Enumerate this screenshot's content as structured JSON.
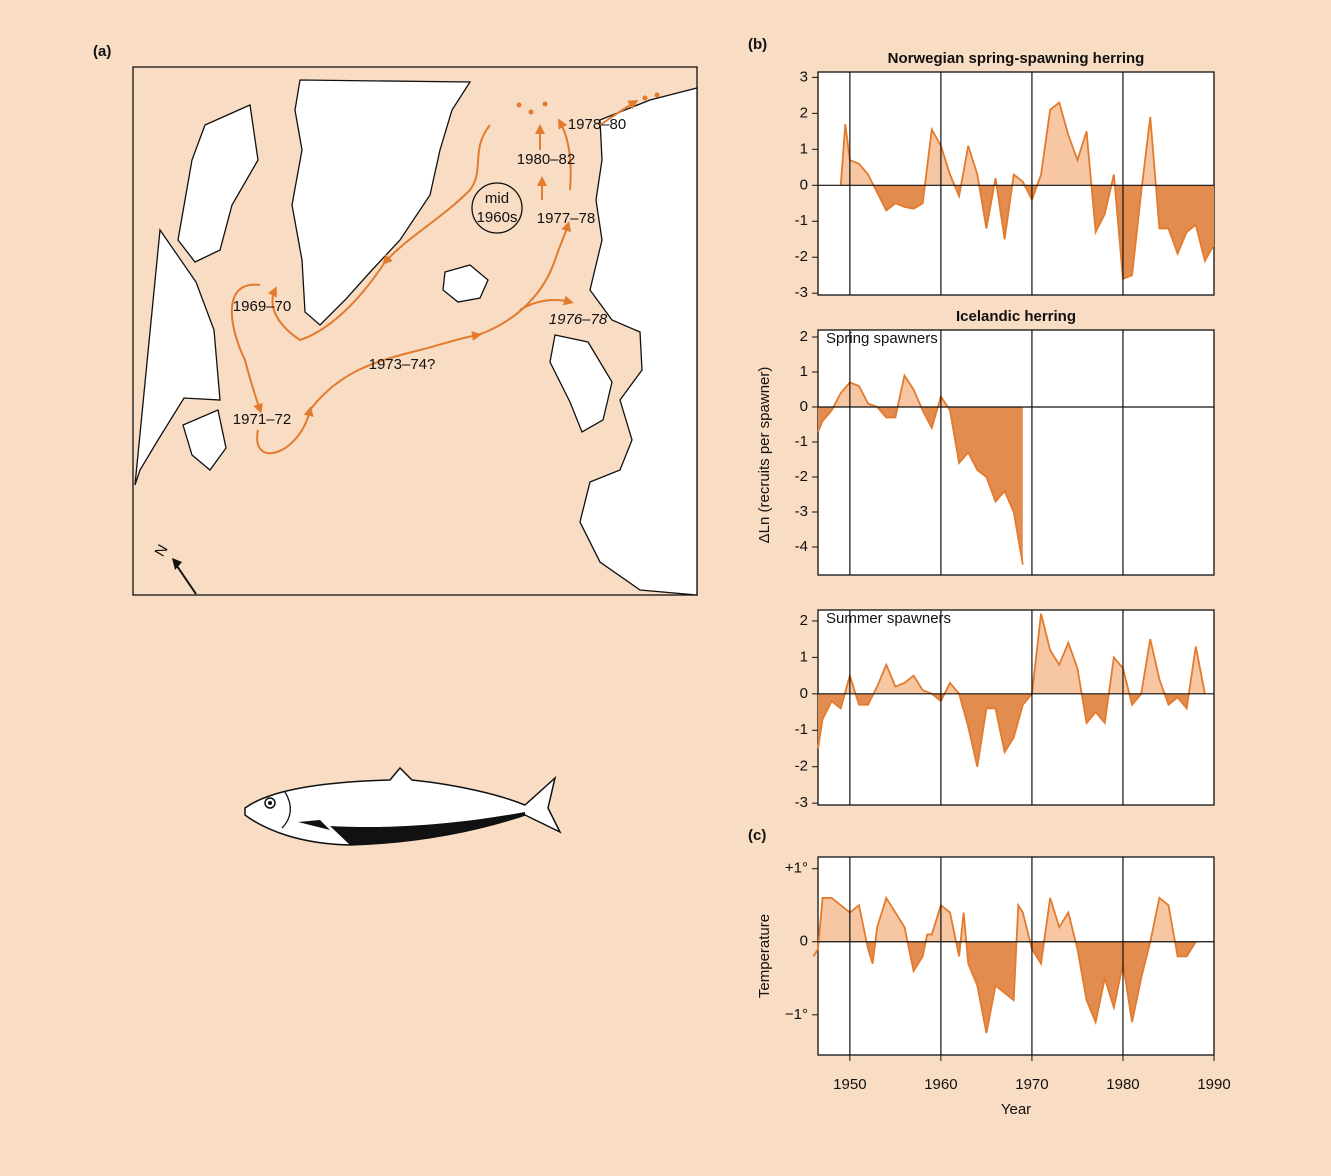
{
  "map": {
    "panel_label": "(a)",
    "north": "N",
    "labels": [
      "1978–80",
      "1980–82",
      "1977–78",
      "1969–70",
      "1976–78",
      "1973–74?",
      "1971–72"
    ],
    "circle_label": [
      "mid",
      "1960s"
    ]
  },
  "chart_data": [
    {
      "type": "area",
      "panel_label": "(b)",
      "title": "Norwegian spring-spawning herring",
      "x": [
        1949,
        1949.5,
        1950,
        1951,
        1952,
        1953,
        1954,
        1955,
        1956,
        1957,
        1958,
        1959,
        1960,
        1961,
        1962,
        1963,
        1964,
        1965,
        1966,
        1967,
        1968,
        1969,
        1970,
        1971,
        1972,
        1973,
        1974,
        1975,
        1976,
        1977,
        1978,
        1979,
        1980,
        1981,
        1982,
        1983,
        1984,
        1985,
        1986,
        1987,
        1988,
        1989,
        1990
      ],
      "series": [
        {
          "values": [
            0,
            1.7,
            0.7,
            0.6,
            0.3,
            -0.2,
            -0.7,
            -0.5,
            -0.6,
            -0.65,
            -0.5,
            1.55,
            1.1,
            0.3,
            -0.3,
            1.1,
            0.3,
            -1.2,
            0.2,
            -1.5,
            0.3,
            0.1,
            -0.4,
            0.3,
            2.1,
            2.3,
            1.4,
            0.7,
            1.5,
            -1.3,
            -0.8,
            0.3,
            -2.6,
            -2.5,
            -0.2,
            1.9,
            -1.2,
            -1.2,
            -1.9,
            -1.3,
            -1.1,
            -2.1,
            -1.65
          ]
        }
      ],
      "colors": {
        "positive": "#f6c7a2",
        "negative": "#e38c4f",
        "line": "#e27b2e"
      },
      "xlim": [
        1946.5,
        1990
      ],
      "xticks": [
        1950,
        1960,
        1970,
        1980,
        1990
      ],
      "xtick_labels": false,
      "ylim": [
        -3.05,
        3.15
      ],
      "yticks": [
        3,
        2,
        1,
        0,
        -1,
        -2,
        -3
      ]
    },
    {
      "type": "area",
      "title": "Icelandic herring",
      "subtitle": "Spring spawners",
      "ylabel": "ΔLn (recruits per spawner)",
      "x": [
        1946.5,
        1947,
        1948,
        1949,
        1950,
        1951,
        1952,
        1953,
        1954,
        1955,
        1956,
        1957,
        1958,
        1959,
        1960,
        1961,
        1962,
        1963,
        1964,
        1965,
        1966,
        1967,
        1968,
        1969
      ],
      "series": [
        {
          "values": [
            -0.7,
            -0.4,
            -0.1,
            0.4,
            0.7,
            0.6,
            0.1,
            0.0,
            -0.3,
            -0.3,
            0.9,
            0.5,
            -0.1,
            -0.6,
            0.3,
            -0.1,
            -1.6,
            -1.3,
            -1.8,
            -2.0,
            -2.7,
            -2.4,
            -3.0,
            -4.5
          ]
        }
      ],
      "colors": {
        "positive": "#f6c7a2",
        "negative": "#e38c4f",
        "line": "#e27b2e"
      },
      "xlim": [
        1946.5,
        1990
      ],
      "xticks": [
        1950,
        1960,
        1970,
        1980,
        1990
      ],
      "xtick_labels": false,
      "ylim": [
        -4.8,
        2.2
      ],
      "yticks": [
        2,
        1,
        0,
        -1,
        -2,
        -3,
        -4
      ]
    },
    {
      "type": "area",
      "subtitle": "Summer spawners",
      "x": [
        1946.5,
        1947,
        1948,
        1949,
        1950,
        1951,
        1952,
        1953,
        1954,
        1955,
        1956,
        1957,
        1958,
        1959,
        1960,
        1961,
        1962,
        1963,
        1964,
        1965,
        1966,
        1967,
        1968,
        1969,
        1970,
        1971,
        1972,
        1973,
        1974,
        1975,
        1976,
        1977,
        1978,
        1979,
        1980,
        1981,
        1982,
        1983,
        1984,
        1985,
        1986,
        1987,
        1988,
        1989
      ],
      "series": [
        {
          "values": [
            -1.5,
            -0.7,
            -0.2,
            -0.4,
            0.5,
            -0.3,
            -0.3,
            0.2,
            0.8,
            0.2,
            0.3,
            0.5,
            0.1,
            0.0,
            -0.2,
            0.3,
            0.0,
            -0.9,
            -2.0,
            -0.4,
            -0.4,
            -1.6,
            -1.2,
            -0.3,
            0.0,
            2.2,
            1.2,
            0.8,
            1.4,
            0.7,
            -0.8,
            -0.5,
            -0.8,
            1.0,
            0.7,
            -0.3,
            0.0,
            1.5,
            0.4,
            -0.3,
            -0.1,
            -0.4,
            1.3,
            0.0
          ]
        }
      ],
      "colors": {
        "positive": "#f6c7a2",
        "negative": "#e38c4f",
        "line": "#e27b2e"
      },
      "xlim": [
        1946.5,
        1990
      ],
      "xticks": [
        1950,
        1960,
        1970,
        1980,
        1990
      ],
      "xtick_labels": false,
      "ylim": [
        -3.05,
        2.3
      ],
      "yticks": [
        2,
        1,
        0,
        -1,
        -2,
        -3
      ]
    },
    {
      "type": "area",
      "panel_label": "(c)",
      "ylabel": "Temperature",
      "xlabel": "Year",
      "x": [
        1946,
        1946.5,
        1947,
        1948,
        1949,
        1950,
        1951,
        1952,
        1952.5,
        1953,
        1954,
        1955,
        1956,
        1957,
        1958,
        1958.5,
        1959,
        1960,
        1961,
        1962,
        1962.5,
        1963,
        1964,
        1965,
        1966,
        1967,
        1968,
        1968.5,
        1969,
        1970,
        1971,
        1972,
        1973,
        1974,
        1975,
        1976,
        1977,
        1978,
        1979,
        1980,
        1981,
        1982,
        1983,
        1984,
        1985,
        1986,
        1987,
        1988
      ],
      "series": [
        {
          "values": [
            -0.2,
            -0.1,
            0.6,
            0.6,
            0.5,
            0.4,
            0.5,
            -0.1,
            -0.3,
            0.2,
            0.6,
            0.4,
            0.2,
            -0.4,
            -0.2,
            0.1,
            0.1,
            0.5,
            0.4,
            -0.2,
            0.4,
            -0.3,
            -0.6,
            -1.25,
            -0.6,
            -0.7,
            -0.8,
            0.5,
            0.4,
            -0.1,
            -0.3,
            0.6,
            0.2,
            0.4,
            -0.1,
            -0.8,
            -1.1,
            -0.5,
            -0.9,
            -0.3,
            -1.1,
            -0.5,
            0.0,
            0.6,
            0.5,
            -0.2,
            -0.2,
            0.0
          ]
        }
      ],
      "colors": {
        "positive": "#f6c7a2",
        "negative": "#e38c4f",
        "line": "#e27b2e"
      },
      "xlim": [
        1946.5,
        1990
      ],
      "xticks": [
        1950,
        1960,
        1970,
        1980,
        1990
      ],
      "xtick_labels": true,
      "ylim": [
        -1.55,
        1.16
      ],
      "yticks": [
        {
          "value": 1,
          "label": "+1°"
        },
        0,
        {
          "value": -1,
          "label": "−1°"
        }
      ]
    }
  ]
}
